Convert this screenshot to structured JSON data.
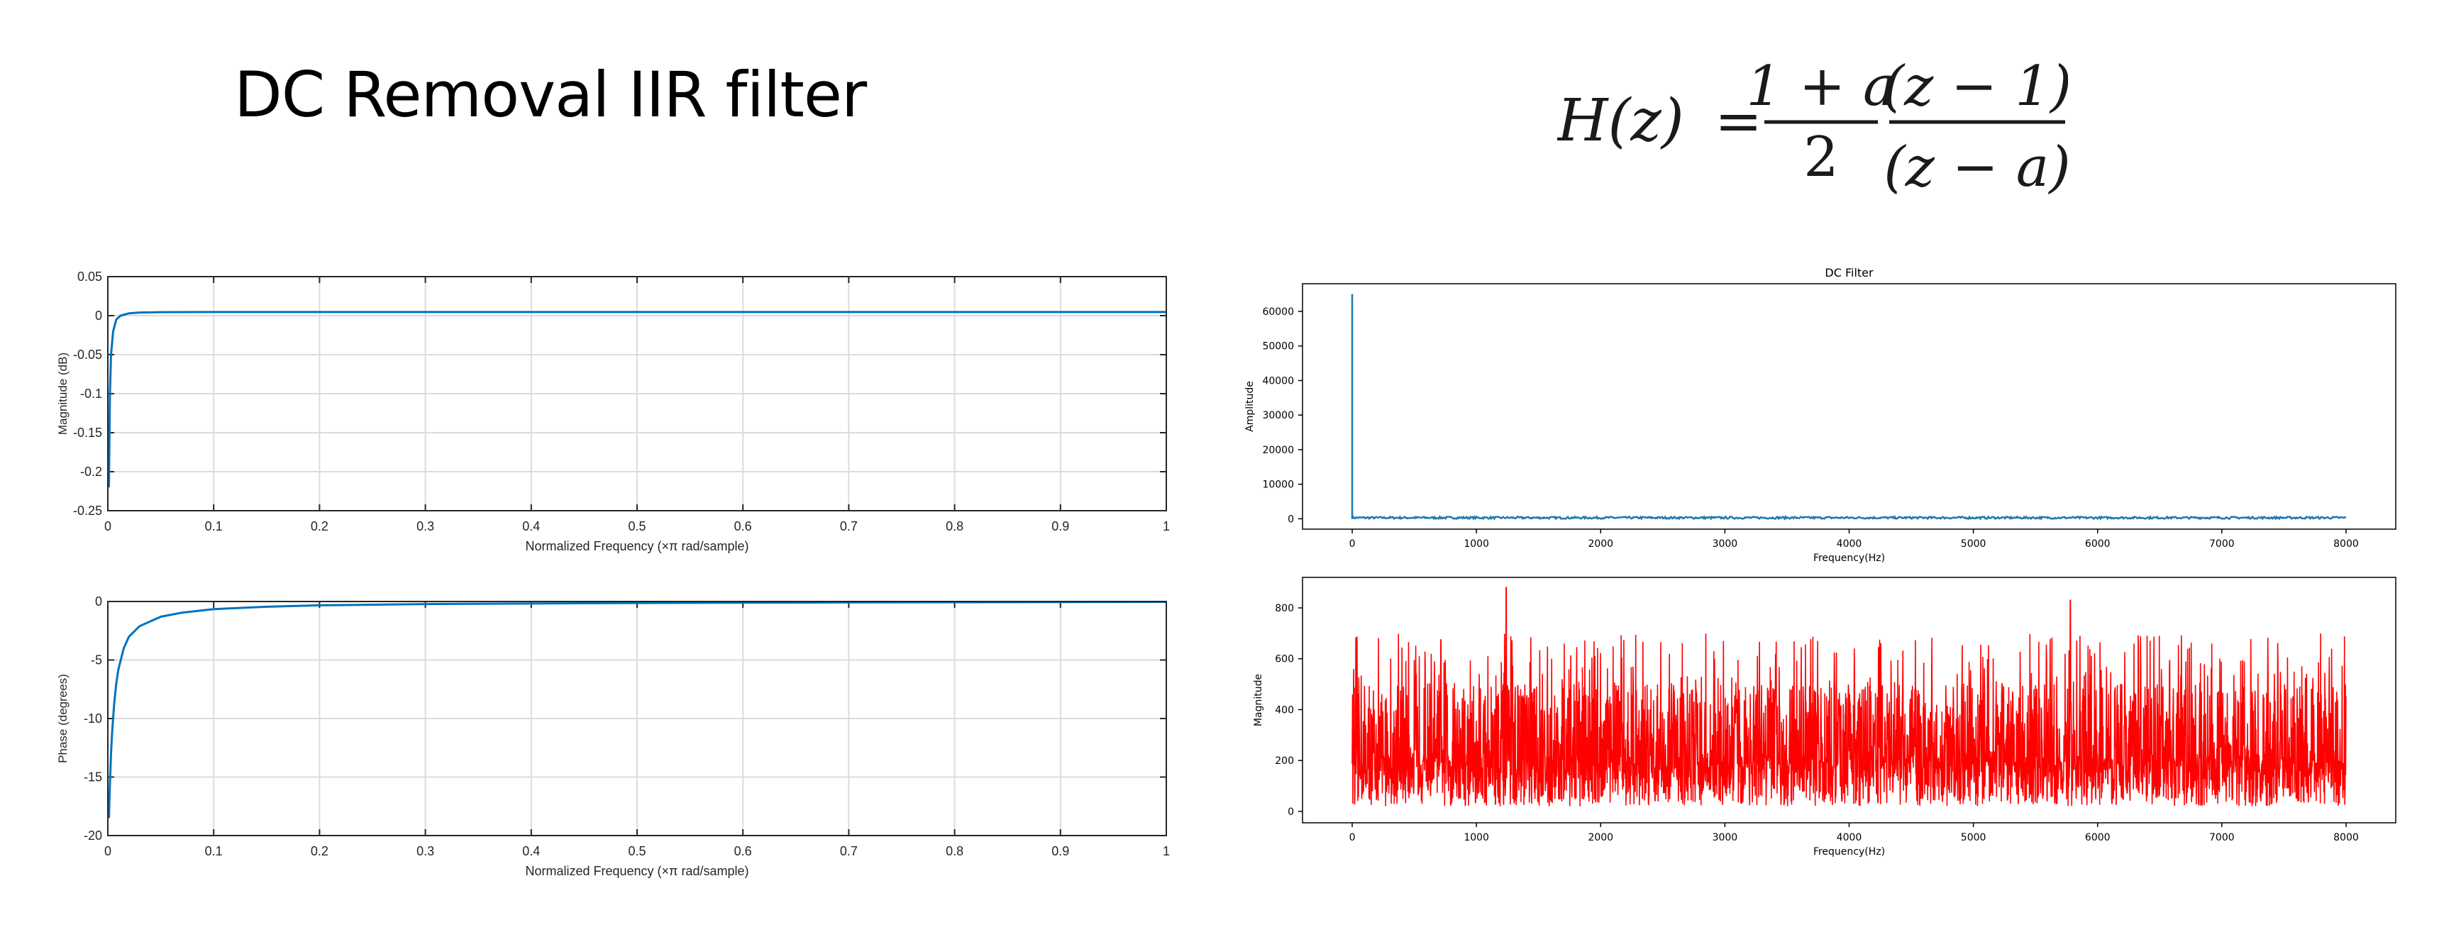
{
  "slide": {
    "title": "DC Removal IIR filter",
    "formula": {
      "lhs": "H(z)",
      "equals": "=",
      "numerator_left": "1 + a",
      "denominator_left": "2",
      "numerator_right": "(z − 1)",
      "denominator_right": "(z − a)"
    }
  },
  "colors": {
    "matlab_line": "#0072bd",
    "mpl_blue": "#1f77b4",
    "red": "#ff0000",
    "grid": "#dcdcdc"
  },
  "chart_data": [
    {
      "id": "magnitude",
      "type": "line",
      "title": "",
      "xlabel": "Normalized Frequency  (×π rad/sample)",
      "ylabel": "Magnitude (dB)",
      "xlim": [
        0,
        1
      ],
      "ylim": [
        -0.25,
        0.05
      ],
      "xticks": [
        "0",
        "0.1",
        "0.2",
        "0.3",
        "0.4",
        "0.5",
        "0.6",
        "0.7",
        "0.8",
        "0.9",
        "1"
      ],
      "yticks": [
        "0.05",
        "0",
        "-0.05",
        "-0.1",
        "-0.15",
        "-0.2",
        "-0.25"
      ],
      "grid": true,
      "x": [
        0.001,
        0.002,
        0.003,
        0.005,
        0.008,
        0.012,
        0.02,
        0.03,
        0.05,
        0.1,
        0.2,
        0.5,
        1.0
      ],
      "y": [
        -0.22,
        -0.1,
        -0.05,
        -0.02,
        -0.005,
        0.0,
        0.003,
        0.004,
        0.0045,
        0.0046,
        0.0046,
        0.0046,
        0.0046
      ]
    },
    {
      "id": "phase",
      "type": "line",
      "title": "",
      "xlabel": "Normalized Frequency  (×π rad/sample)",
      "ylabel": "Phase (degrees)",
      "xlim": [
        0,
        1
      ],
      "ylim": [
        -20,
        0
      ],
      "xticks": [
        "0",
        "0.1",
        "0.2",
        "0.3",
        "0.4",
        "0.5",
        "0.6",
        "0.7",
        "0.8",
        "0.9",
        "1"
      ],
      "yticks": [
        "0",
        "-5",
        "-10",
        "-15",
        "-20"
      ],
      "grid": true,
      "x": [
        0.001,
        0.002,
        0.003,
        0.004,
        0.006,
        0.008,
        0.01,
        0.015,
        0.02,
        0.03,
        0.05,
        0.07,
        0.1,
        0.15,
        0.2,
        0.3,
        0.5,
        0.7,
        1.0
      ],
      "y": [
        -18.5,
        -15.5,
        -13.0,
        -11.2,
        -8.7,
        -7.0,
        -5.8,
        -4.0,
        -3.0,
        -2.1,
        -1.3,
        -0.95,
        -0.65,
        -0.45,
        -0.33,
        -0.22,
        -0.13,
        -0.08,
        -0.03
      ]
    },
    {
      "id": "dc-filter-amplitude",
      "type": "line",
      "title": "DC Filter",
      "xlabel": "Frequency(Hz)",
      "ylabel": "Amplitude",
      "xlim": [
        -400,
        8400
      ],
      "ylim": [
        -3000,
        68000
      ],
      "xticks": [
        0,
        1000,
        2000,
        3000,
        4000,
        5000,
        6000,
        7000,
        8000
      ],
      "yticks": [
        0,
        10000,
        20000,
        30000,
        40000,
        50000,
        60000
      ],
      "grid": false,
      "spike": {
        "x": 0,
        "y": 65000
      },
      "baseline": 300,
      "x_end": 8000
    },
    {
      "id": "dc-filter-magnitude",
      "type": "line",
      "title": "",
      "xlabel": "Frequency(Hz)",
      "ylabel": "Magnitude",
      "xlim": [
        -400,
        8400
      ],
      "ylim": [
        -45,
        920
      ],
      "xticks": [
        0,
        1000,
        2000,
        3000,
        4000,
        5000,
        6000,
        7000,
        8000
      ],
      "yticks": [
        0,
        200,
        400,
        600,
        800
      ],
      "grid": false,
      "x_range": [
        0,
        8000
      ],
      "typical_range": [
        20,
        700
      ],
      "peaks": [
        {
          "x": 1240,
          "y": 880
        },
        {
          "x": 5780,
          "y": 830
        },
        {
          "x": 12,
          "y": 560
        }
      ]
    }
  ]
}
